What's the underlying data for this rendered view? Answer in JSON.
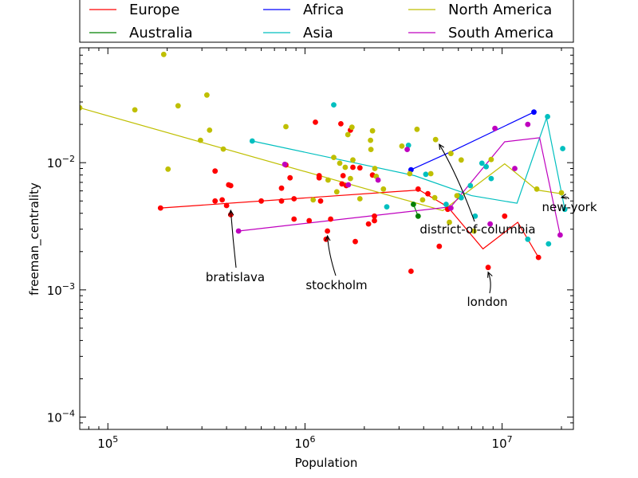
{
  "chart_data": {
    "type": "scatter",
    "xlabel": "Population",
    "ylabel": "freeman_centrality",
    "x_scale": "log",
    "y_scale": "log",
    "xlim": [
      72000,
      23000000
    ],
    "ylim": [
      8e-05,
      0.08
    ],
    "x_ticks": [
      {
        "value": 100000,
        "base": "10",
        "exp": "5"
      },
      {
        "value": 1000000,
        "base": "10",
        "exp": "6"
      },
      {
        "value": 10000000,
        "base": "10",
        "exp": "7"
      }
    ],
    "y_ticks": [
      {
        "value": 0.0001,
        "base": "10",
        "exp": "−4"
      },
      {
        "value": 0.001,
        "base": "10",
        "exp": "−3"
      },
      {
        "value": 0.01,
        "base": "10",
        "exp": "−2"
      }
    ],
    "legend": {
      "placement": "top, above plot",
      "entries": [
        {
          "label": "Europe",
          "color": "#ff0000"
        },
        {
          "label": "Africa",
          "color": "#0000ff"
        },
        {
          "label": "North America",
          "color": "#bfbf00"
        },
        {
          "label": "Australia",
          "color": "#008000"
        },
        {
          "label": "Asia",
          "color": "#00bfbf"
        },
        {
          "label": "South America",
          "color": "#bf00bf"
        }
      ]
    },
    "series": [
      {
        "name": "Europe",
        "color": "#ff0000",
        "points": [
          [
            185000,
            0.0044
          ],
          [
            350000,
            0.0086
          ],
          [
            350000,
            0.005
          ],
          [
            380000,
            0.0051
          ],
          [
            400000,
            0.0046
          ],
          [
            410000,
            0.0067
          ],
          [
            420000,
            0.0066
          ],
          [
            420000,
            0.0039
          ],
          [
            600000,
            0.005
          ],
          [
            760000,
            0.0063
          ],
          [
            760000,
            0.005
          ],
          [
            800000,
            0.0096
          ],
          [
            840000,
            0.0076
          ],
          [
            880000,
            0.0036
          ],
          [
            880000,
            0.0052
          ],
          [
            1050000,
            0.0035
          ],
          [
            1130000,
            0.0208
          ],
          [
            1180000,
            0.0079
          ],
          [
            1180000,
            0.0076
          ],
          [
            1200000,
            0.005
          ],
          [
            1280000,
            0.0025
          ],
          [
            1300000,
            0.0029
          ],
          [
            1350000,
            0.0036
          ],
          [
            1520000,
            0.0202
          ],
          [
            1540000,
            0.0068
          ],
          [
            1560000,
            0.0079
          ],
          [
            1620000,
            0.0066
          ],
          [
            1700000,
            0.018
          ],
          [
            1750000,
            0.0092
          ],
          [
            1800000,
            0.0024
          ],
          [
            1900000,
            0.0091
          ],
          [
            2100000,
            0.0033
          ],
          [
            2200000,
            0.008
          ],
          [
            2250000,
            0.0038
          ],
          [
            2250000,
            0.0035
          ],
          [
            3450000,
            0.0014
          ],
          [
            3750000,
            0.0062
          ],
          [
            4200000,
            0.0057
          ],
          [
            4800000,
            0.0022
          ],
          [
            5300000,
            0.0043
          ],
          [
            8500000,
            0.0015
          ],
          [
            10300000,
            0.0038
          ],
          [
            15300000,
            0.0018
          ]
        ],
        "line": [
          [
            185000,
            0.0044
          ],
          [
            3800000,
            0.0061
          ],
          [
            5300000,
            0.0045
          ],
          [
            8000000,
            0.0021
          ],
          [
            12000000,
            0.0034
          ],
          [
            15300000,
            0.0018
          ]
        ]
      },
      {
        "name": "Africa",
        "color": "#0000ff",
        "points": [
          [
            3450000,
            0.0088
          ],
          [
            14500000,
            0.025
          ]
        ],
        "line": [
          [
            3450000,
            0.0088
          ],
          [
            5700000,
            0.0125
          ],
          [
            14500000,
            0.025
          ]
        ]
      },
      {
        "name": "Australia",
        "color": "#008000",
        "points": [
          [
            3550000,
            0.0047
          ],
          [
            3750000,
            0.0038
          ]
        ],
        "line": [
          [
            3550000,
            0.0047
          ],
          [
            3750000,
            0.0038
          ]
        ]
      },
      {
        "name": "Asia",
        "color": "#00bfbf",
        "points": [
          [
            540000,
            0.0148
          ],
          [
            1400000,
            0.0285
          ],
          [
            2600000,
            0.0045
          ],
          [
            3350000,
            0.0137
          ],
          [
            4100000,
            0.0081
          ],
          [
            5200000,
            0.0047
          ],
          [
            6000000,
            0.0055
          ],
          [
            6200000,
            0.0053
          ],
          [
            6900000,
            0.0066
          ],
          [
            7300000,
            0.0038
          ],
          [
            7900000,
            0.0099
          ],
          [
            8300000,
            0.0093
          ],
          [
            8800000,
            0.0075
          ],
          [
            13500000,
            0.0025
          ],
          [
            17000000,
            0.023
          ],
          [
            17200000,
            0.0023
          ],
          [
            20300000,
            0.0129
          ],
          [
            20800000,
            0.0043
          ]
        ],
        "line": [
          [
            540000,
            0.0148
          ],
          [
            3600000,
            0.0079
          ],
          [
            7000000,
            0.0055
          ],
          [
            11900000,
            0.0048
          ],
          [
            16800000,
            0.0225
          ],
          [
            20800000,
            0.0043
          ]
        ]
      },
      {
        "name": "North America",
        "color": "#bfbf00",
        "points": [
          [
            72000,
            0.027
          ],
          [
            137000,
            0.026
          ],
          [
            192000,
            0.071
          ],
          [
            202000,
            0.0089
          ],
          [
            227000,
            0.028
          ],
          [
            295000,
            0.015
          ],
          [
            318000,
            0.034
          ],
          [
            328000,
            0.018
          ],
          [
            385000,
            0.0128
          ],
          [
            800000,
            0.0192
          ],
          [
            1100000,
            0.0051
          ],
          [
            1310000,
            0.0073
          ],
          [
            1400000,
            0.011
          ],
          [
            1450000,
            0.0059
          ],
          [
            1500000,
            0.0099
          ],
          [
            1600000,
            0.0092
          ],
          [
            1650000,
            0.0166
          ],
          [
            1700000,
            0.0075
          ],
          [
            1730000,
            0.019
          ],
          [
            1750000,
            0.0105
          ],
          [
            1900000,
            0.0052
          ],
          [
            2150000,
            0.015
          ],
          [
            2160000,
            0.0127
          ],
          [
            2200000,
            0.0178
          ],
          [
            2260000,
            0.009
          ],
          [
            2300000,
            0.0078
          ],
          [
            2500000,
            0.0062
          ],
          [
            3100000,
            0.0135
          ],
          [
            3400000,
            0.0082
          ],
          [
            3700000,
            0.0183
          ],
          [
            3950000,
            0.0051
          ],
          [
            4350000,
            0.0082
          ],
          [
            4550000,
            0.0053
          ],
          [
            4600000,
            0.0152
          ],
          [
            5400000,
            0.0034
          ],
          [
            5500000,
            0.0118
          ],
          [
            5900000,
            0.0055
          ],
          [
            6200000,
            0.0105
          ],
          [
            7200000,
            0.0029
          ],
          [
            8800000,
            0.0106
          ],
          [
            15000000,
            0.0062
          ],
          [
            20000000,
            0.0058
          ]
        ],
        "line": [
          [
            72000,
            0.027
          ],
          [
            5000000,
            0.0042
          ],
          [
            10300000,
            0.0098
          ],
          [
            15000000,
            0.0061
          ],
          [
            20000000,
            0.0057
          ]
        ]
      },
      {
        "name": "South America",
        "color": "#bf00bf",
        "points": [
          [
            460000,
            0.0029
          ],
          [
            790000,
            0.0097
          ],
          [
            1660000,
            0.0067
          ],
          [
            2350000,
            0.0073
          ],
          [
            3300000,
            0.0127
          ],
          [
            5500000,
            0.0044
          ],
          [
            8700000,
            0.0033
          ],
          [
            9200000,
            0.0186
          ],
          [
            11600000,
            0.009
          ],
          [
            13500000,
            0.02
          ],
          [
            19700000,
            0.0027
          ]
        ],
        "line": [
          [
            460000,
            0.0029
          ],
          [
            5500000,
            0.0045
          ],
          [
            10300000,
            0.0146
          ],
          [
            15500000,
            0.0157
          ],
          [
            19700000,
            0.0027
          ]
        ]
      }
    ],
    "annotations": [
      {
        "text": "bratislava",
        "target": [
          420000,
          0.0046
        ]
      },
      {
        "text": "stockholm",
        "target": [
          1300000,
          0.0029
        ]
      },
      {
        "text": "district-of-columbia",
        "target": [
          4800000,
          0.0152
        ]
      },
      {
        "text": "london",
        "target": [
          8500000,
          0.0015
        ]
      },
      {
        "text": "new-york",
        "target": [
          20000000,
          0.0058
        ]
      }
    ]
  }
}
